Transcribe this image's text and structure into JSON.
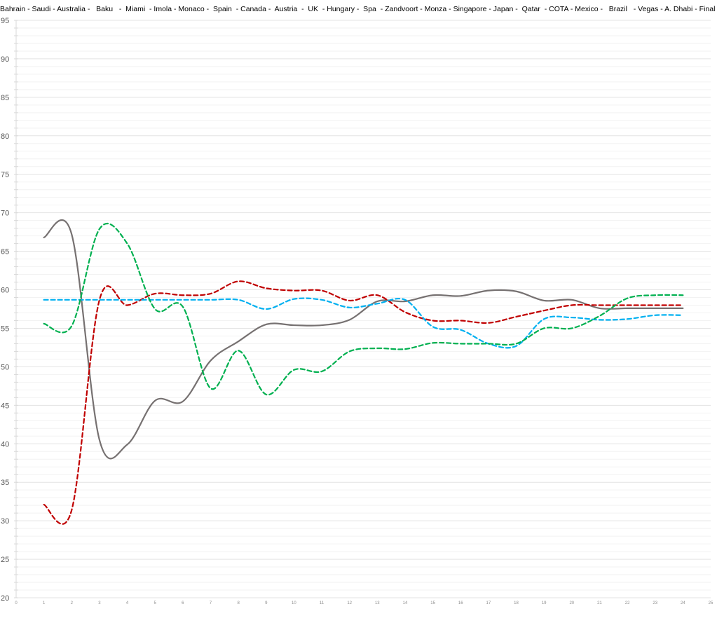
{
  "chart_data": {
    "type": "line",
    "title": "Bahrain - Saudi - Australia -   Baku   -  Miami  - Imola - Monaco -  Spain  - Canada -  Austria  -  UK  - Hungary -  Spa  - Zandvoort - Monza - Singapore - Japan -  Qatar  - COTA - Mexico -   Brazil   - Vegas - A. Dhabi - Final Score",
    "xlabel": "",
    "ylabel": "",
    "xlim": [
      0,
      25
    ],
    "ylim": [
      20,
      95
    ],
    "x_ticks": [
      0,
      1,
      2,
      3,
      4,
      5,
      6,
      7,
      8,
      9,
      10,
      11,
      12,
      13,
      14,
      15,
      16,
      17,
      18,
      19,
      20,
      21,
      22,
      23,
      24,
      25
    ],
    "y_ticks": [
      20,
      25,
      30,
      35,
      40,
      45,
      50,
      55,
      60,
      65,
      70,
      75,
      80,
      85,
      90,
      95
    ],
    "grid": {
      "major": true,
      "minor": true
    },
    "smoothed": true,
    "x": [
      1,
      2,
      3,
      4,
      5,
      6,
      7,
      8,
      9,
      10,
      11,
      12,
      13,
      14,
      15,
      16,
      17,
      18,
      19,
      20,
      21,
      22,
      23,
      24
    ],
    "series": [
      {
        "color": "#767171",
        "style": "solid",
        "values": [
          66.8,
          67.2,
          40.5,
          39.9,
          45.6,
          45.5,
          50.8,
          53.3,
          55.5,
          55.4,
          55.4,
          56.1,
          58.5,
          58.5,
          59.3,
          59.2,
          59.9,
          59.8,
          58.6,
          58.7,
          57.6,
          57.6,
          57.6,
          57.6
        ]
      },
      {
        "color": "#C00000",
        "style": "dashed",
        "values": [
          32.1,
          31.4,
          58.7,
          58.0,
          59.5,
          59.3,
          59.5,
          61.1,
          60.2,
          59.9,
          59.9,
          58.6,
          59.3,
          57.1,
          56.0,
          56.0,
          55.7,
          56.5,
          57.3,
          58.0,
          58.0,
          58.0,
          58.0,
          58.0
        ]
      },
      {
        "color": "#00B0F0",
        "style": "dashed",
        "values": [
          58.7,
          58.7,
          58.7,
          58.7,
          58.7,
          58.7,
          58.7,
          58.7,
          57.5,
          58.8,
          58.7,
          57.7,
          58.2,
          58.7,
          55.2,
          54.8,
          53.0,
          52.7,
          56.2,
          56.4,
          56.1,
          56.2,
          56.7,
          56.7
        ]
      },
      {
        "color": "#00B050",
        "style": "dashed",
        "values": [
          55.6,
          55.3,
          67.9,
          66.0,
          57.5,
          57.8,
          47.2,
          52.1,
          46.4,
          49.6,
          49.4,
          52.0,
          52.4,
          52.3,
          53.1,
          53.0,
          53.0,
          53.0,
          55.0,
          55.0,
          56.6,
          58.9,
          59.3,
          59.3
        ]
      }
    ]
  }
}
